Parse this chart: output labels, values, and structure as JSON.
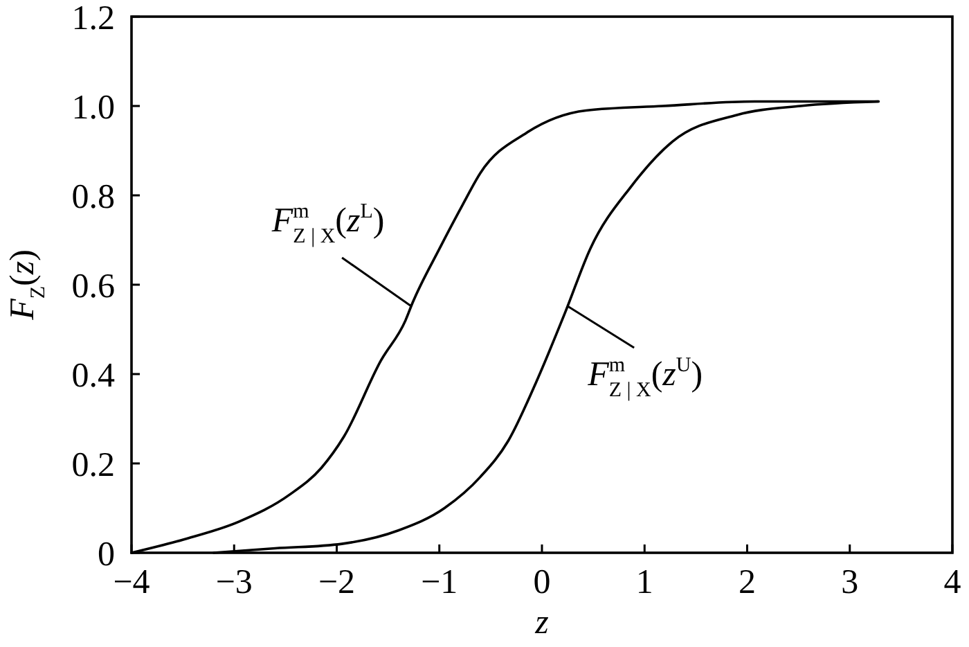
{
  "chart_data": {
    "type": "line",
    "xlabel": "z",
    "ylabel": "F$_{Z}$(z)",
    "xlim": [
      -4,
      4
    ],
    "ylim": [
      0,
      1.2
    ],
    "xticks": [
      {
        "value": -4,
        "label": "−4"
      },
      {
        "value": -3,
        "label": "−3"
      },
      {
        "value": -2,
        "label": "−2"
      },
      {
        "value": -1,
        "label": "−1"
      },
      0,
      1,
      2,
      3,
      4
    ],
    "yticks": [
      0,
      0.2,
      0.4,
      0.6,
      0.8,
      {
        "value": 1,
        "label": "1.0"
      },
      1.2
    ],
    "series": [
      {
        "name": "F$^{m}$$_{Z | X}$(z$^{L}$)",
        "color": "#000000",
        "x": [
          -4,
          -3.49,
          -2.95,
          -2.46,
          -2.15,
          -1.93,
          -1.57,
          -1.33,
          -1.26,
          -1.0,
          -0.77,
          -0.6,
          -0.15,
          0.43,
          1.18,
          2.07,
          3.28
        ],
        "values": [
          0,
          0.03,
          0.07,
          0.13,
          0.19,
          0.26,
          0.43,
          0.52,
          0.56,
          0.68,
          0.78,
          0.85,
          0.94,
          0.99,
          1.0,
          1.01,
          1.01
        ]
      },
      {
        "name": "F$^{m}$$_{Z | X}$(z$^{U}$)",
        "color": "#000000",
        "x": [
          -3.2,
          -2.6,
          -1.95,
          -1.4,
          -0.95,
          -0.6,
          -0.33,
          -0.06,
          0.23,
          0.47,
          0.87,
          1.27,
          1.9,
          2.52,
          3.28
        ],
        "values": [
          0,
          0.01,
          0.02,
          0.05,
          0.1,
          0.17,
          0.25,
          0.38,
          0.54,
          0.68,
          0.82,
          0.92,
          0.98,
          1.0,
          1.01
        ]
      }
    ]
  }
}
